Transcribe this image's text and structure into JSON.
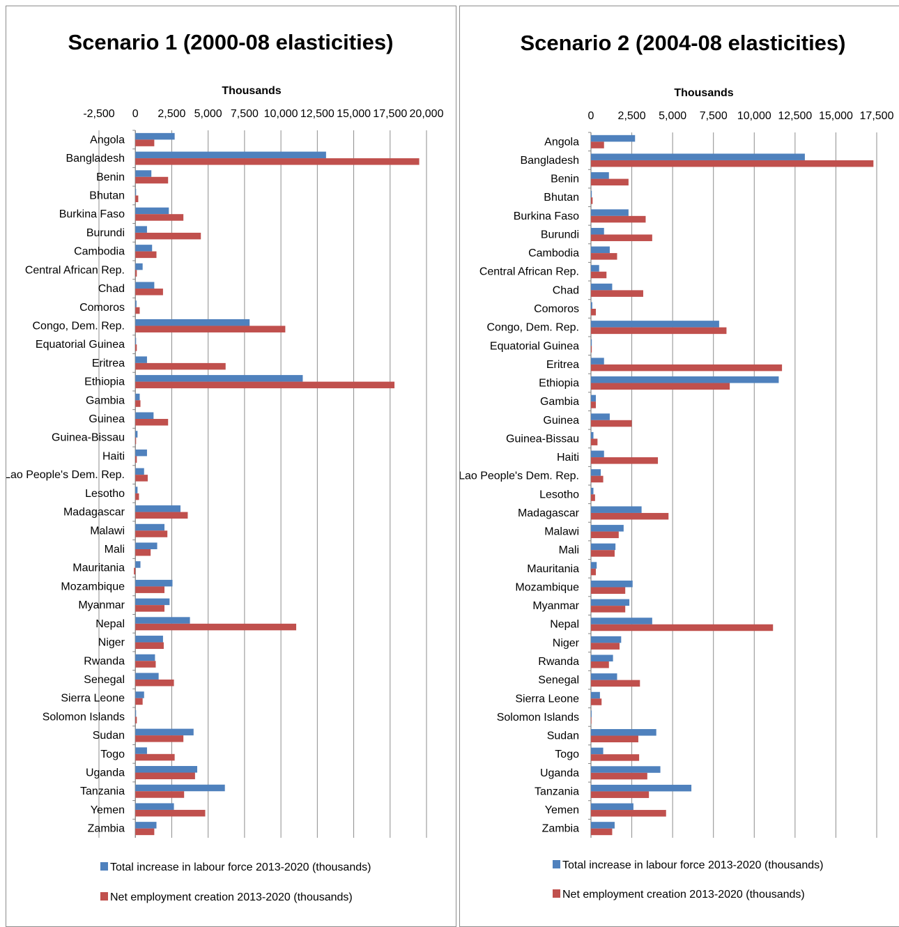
{
  "charts": [
    {
      "title": "Scenario 1 (2000-08 elasticities)",
      "unit_label": "Thousands",
      "tick_labels": [
        "-2,500",
        "0",
        "2,500",
        "5,000",
        "7,500",
        "10,000",
        "12,500",
        "15,000",
        "17,500",
        "20,000"
      ],
      "legend": [
        "Total increase in labour force 2013-2020 (thousands)",
        "Net employment creation 2013-2020 (thousands)"
      ]
    },
    {
      "title": "Scenario 2 (2004-08 elasticities)",
      "unit_label": "Thousands",
      "tick_labels": [
        "0",
        "2,500",
        "5,000",
        "7,500",
        "10,000",
        "12,500",
        "15,000",
        "17,500"
      ],
      "legend": [
        "Total increase in labour force 2013-2020 (thousands)",
        "Net employment creation 2013-2020 (thousands)"
      ]
    }
  ],
  "colors": {
    "labour_force": "#4f81bd",
    "employment": "#c0504d",
    "grid": "#8c8c8c"
  },
  "chart_data": [
    {
      "type": "bar",
      "orientation": "horizontal",
      "title": "Scenario 1 (2000-08 elasticities)",
      "xlabel": "Thousands",
      "xlim": [
        -2500,
        20000
      ],
      "grid": true,
      "legend_position": "bottom",
      "categories": [
        "Angola",
        "Bangladesh",
        "Benin",
        "Bhutan",
        "Burkina Faso",
        "Burundi",
        "Cambodia",
        "Central African Rep.",
        "Chad",
        "Comoros",
        "Congo, Dem. Rep.",
        "Equatorial Guinea",
        "Eritrea",
        "Ethiopia",
        "Gambia",
        "Guinea",
        "Guinea-Bissau",
        "Haiti",
        "Lao People's Dem. Rep.",
        "Lesotho",
        "Madagascar",
        "Malawi",
        "Mali",
        "Mauritania",
        "Mozambique",
        "Myanmar",
        "Nepal",
        "Niger",
        "Rwanda",
        "Senegal",
        "Sierra Leone",
        "Solomon Islands",
        "Sudan",
        "Togo",
        "Uganda",
        "Tanzania",
        "Yemen",
        "Zambia"
      ],
      "series": [
        {
          "name": "Total increase in labour force 2013-2020 (thousands)",
          "values": [
            2700,
            13100,
            1100,
            50,
            2300,
            800,
            1150,
            500,
            1300,
            80,
            7850,
            50,
            800,
            11500,
            300,
            1250,
            150,
            800,
            600,
            150,
            3100,
            2000,
            1500,
            350,
            2550,
            2350,
            3750,
            1900,
            1350,
            1600,
            600,
            50,
            4000,
            800,
            4250,
            6150,
            2650,
            1450
          ]
        },
        {
          "name": "Net employment creation 2013-2020 (thousands)",
          "values": [
            1300,
            19500,
            2250,
            200,
            3300,
            4500,
            1450,
            100,
            1900,
            300,
            10300,
            100,
            6200,
            17800,
            350,
            2250,
            50,
            100,
            850,
            250,
            3600,
            2200,
            1050,
            -100,
            2000,
            2000,
            11050,
            1950,
            1400,
            2650,
            500,
            100,
            3300,
            2700,
            4100,
            3350,
            4800,
            1300
          ]
        }
      ]
    },
    {
      "type": "bar",
      "orientation": "horizontal",
      "title": "Scenario 2 (2004-08 elasticities)",
      "xlabel": "Thousands",
      "xlim": [
        0,
        17500
      ],
      "grid": true,
      "legend_position": "bottom",
      "categories": [
        "Angola",
        "Bangladesh",
        "Benin",
        "Bhutan",
        "Burkina Faso",
        "Burundi",
        "Cambodia",
        "Central African Rep.",
        "Chad",
        "Comoros",
        "Congo, Dem. Rep.",
        "Equatorial Guinea",
        "Eritrea",
        "Ethiopia",
        "Gambia",
        "Guinea",
        "Guinea-Bissau",
        "Haiti",
        "Lao People's Dem. Rep.",
        "Lesotho",
        "Madagascar",
        "Malawi",
        "Mali",
        "Mauritania",
        "Mozambique",
        "Myanmar",
        "Nepal",
        "Niger",
        "Rwanda",
        "Senegal",
        "Sierra Leone",
        "Solomon Islands",
        "Sudan",
        "Togo",
        "Uganda",
        "Tanzania",
        "Yemen",
        "Zambia"
      ],
      "series": [
        {
          "name": "Total increase in labour force 2013-2020 (thousands)",
          "values": [
            2700,
            13100,
            1100,
            50,
            2300,
            800,
            1150,
            500,
            1300,
            80,
            7850,
            50,
            800,
            11500,
            300,
            1150,
            150,
            800,
            600,
            150,
            3100,
            2000,
            1500,
            350,
            2550,
            2350,
            3750,
            1850,
            1350,
            1600,
            550,
            40,
            4000,
            750,
            4250,
            6150,
            2600,
            1450
          ]
        },
        {
          "name": "Net employment creation 2013-2020 (thousands)",
          "values": [
            800,
            17300,
            2300,
            100,
            3350,
            3750,
            1600,
            950,
            3200,
            300,
            8300,
            50,
            11700,
            8500,
            300,
            2500,
            400,
            4100,
            750,
            250,
            4750,
            1700,
            1450,
            300,
            2100,
            2100,
            11150,
            1750,
            1100,
            3000,
            650,
            30,
            2900,
            2950,
            3450,
            3550,
            4600,
            1300
          ]
        }
      ]
    }
  ]
}
